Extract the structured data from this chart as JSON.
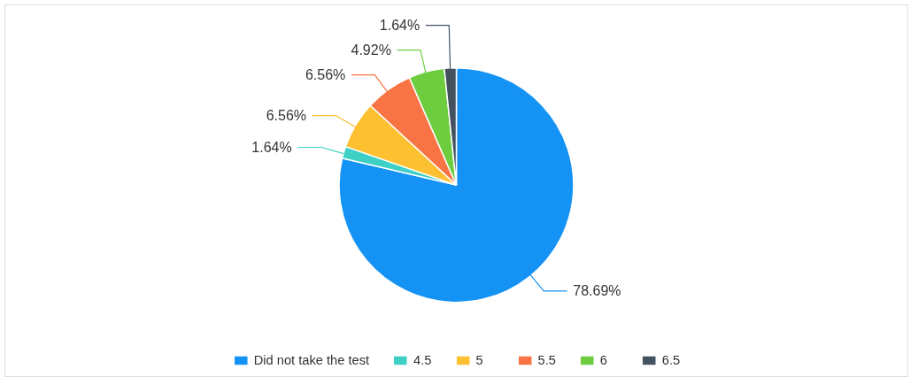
{
  "chart_data": {
    "type": "pie",
    "categories": [
      "Did not take the test",
      "4.5",
      "5",
      "5.5",
      "6",
      "6.5"
    ],
    "values": [
      78.69,
      1.64,
      6.56,
      6.56,
      4.92,
      1.64
    ],
    "colors": [
      "#1593f5",
      "#3ecfc5",
      "#fcc030",
      "#f97444",
      "#6dcd3f",
      "#44525f"
    ],
    "value_labels": [
      "78.69%",
      "1.64%",
      "6.56%",
      "6.56%",
      "4.92%",
      "1.64%"
    ],
    "legend": "bottom"
  }
}
